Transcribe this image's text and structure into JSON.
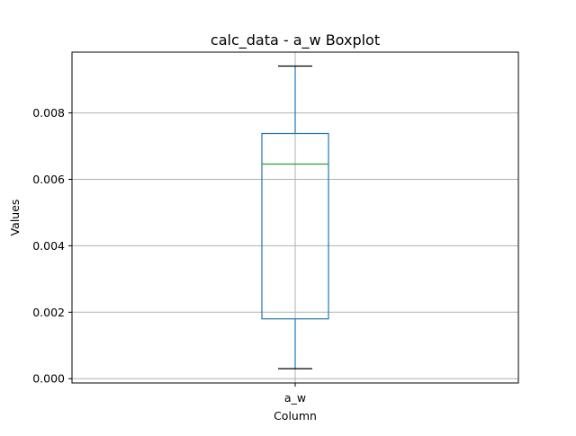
{
  "chart_data": {
    "type": "box",
    "title": "calc_data - a_w Boxplot",
    "xlabel": "Column",
    "ylabel": "Values",
    "categories": [
      "a_w"
    ],
    "boxes": [
      {
        "label": "a_w",
        "whisker_low": 0.0003,
        "q1": 0.0018,
        "median": 0.00646,
        "q3": 0.00738,
        "whisker_high": 0.00941
      }
    ],
    "yticks": [
      0.0,
      0.002,
      0.004,
      0.006,
      0.008
    ],
    "ytick_labels": [
      "0.000",
      "0.002",
      "0.004",
      "0.006",
      "0.008"
    ],
    "ylim": [
      -0.00013,
      0.00983
    ],
    "grid": true,
    "colors": {
      "box": "#1f77b4",
      "median": "#2ca02c",
      "whisker": "#1f77b4",
      "cap": "#000000",
      "grid": "#b0b0b0",
      "axes": "#000000"
    }
  }
}
